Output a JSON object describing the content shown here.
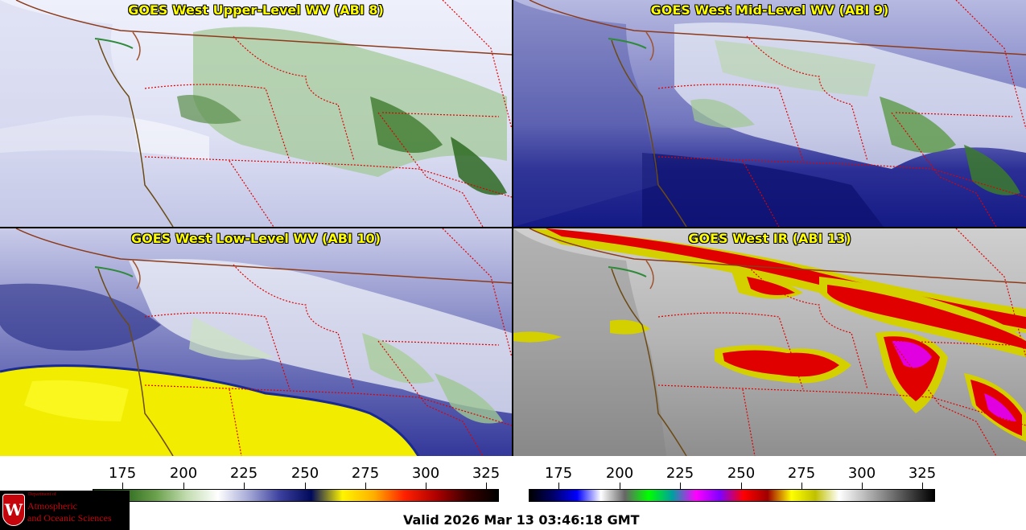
{
  "panels": [
    {
      "title": "GOES West Upper-Level WV (ABI 8)",
      "scheme": "wv-upper"
    },
    {
      "title": "GOES West Mid-Level WV (ABI 9)",
      "scheme": "wv-mid"
    },
    {
      "title": "GOES West Low-Level WV (ABI 10)",
      "scheme": "wv-low"
    },
    {
      "title": "GOES West IR (ABI 13)",
      "scheme": "ir"
    }
  ],
  "colorbars": {
    "wv": {
      "ticks": [
        "175",
        "200",
        "225",
        "250",
        "275",
        "300",
        "325"
      ],
      "range": [
        163,
        330
      ],
      "colors": [
        "#1a3d12",
        "#2f6b1f",
        "#6aa04c",
        "#c2dcb0",
        "#ffffff",
        "#a4a8d6",
        "#3b3f9e",
        "#000a5a",
        "#fff500",
        "#ffb000",
        "#ff2000",
        "#b00000",
        "#3a0000",
        "#000000"
      ]
    },
    "ir": {
      "ticks": [
        "175",
        "200",
        "225",
        "250",
        "275",
        "300",
        "325"
      ],
      "range": [
        163,
        330
      ],
      "colors": [
        "#000000",
        "#00006a",
        "#0000ff",
        "#ffffff",
        "#666666",
        "#00ff00",
        "#00a0a0",
        "#ff00ff",
        "#8000ff",
        "#ff0000",
        "#a00000",
        "#ffff00",
        "#c0c000",
        "#ffffff",
        "#c0c0c0",
        "#808080",
        "#404040",
        "#000000"
      ]
    }
  },
  "footer": {
    "valid_text": "Valid 2026 Mar 13 03:46:18 GMT",
    "logo": {
      "dept": "Department of",
      "line1": "Atmospheric",
      "line2": "and Oceanic Sciences",
      "crest": "W"
    }
  }
}
